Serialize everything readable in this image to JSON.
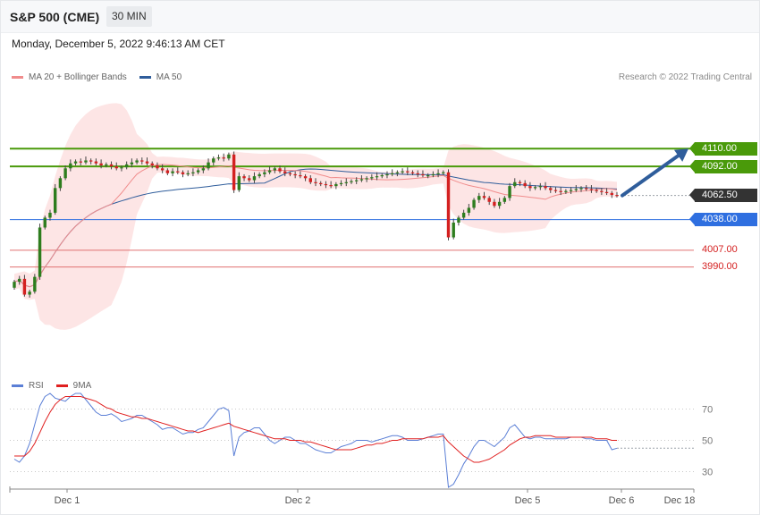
{
  "header": {
    "title": "S&P 500 (CME)",
    "interval": "30 MIN"
  },
  "timestamp": "Monday, December 5, 2022 9:46:13 AM CET",
  "legend": {
    "main": [
      {
        "label": "MA 20 + Bollinger Bands",
        "color": "#f08c8c"
      },
      {
        "label": "MA 50",
        "color": "#2f5d9b"
      }
    ],
    "rsi": [
      {
        "label": "RSI",
        "color": "#5b7fd6"
      },
      {
        "label": "9MA",
        "color": "#e02020"
      }
    ]
  },
  "copyright": "Research © 2022 Trading Central",
  "levels": [
    {
      "label": "4110.00",
      "value": 4110,
      "kind": "resistance",
      "color": "#4a9a0a"
    },
    {
      "label": "4092.00",
      "value": 4092,
      "kind": "resistance",
      "color": "#4a9a0a"
    },
    {
      "label": "4062.50",
      "value": 4062.5,
      "kind": "last",
      "color": "#333333"
    },
    {
      "label": "4038.00",
      "value": 4038,
      "kind": "pivot",
      "color": "#2f6fe0"
    },
    {
      "label": "4007.00",
      "value": 4007,
      "kind": "support",
      "color": "#d42020"
    },
    {
      "label": "3990.00",
      "value": 3990,
      "kind": "support",
      "color": "#d42020"
    }
  ],
  "chart_data": [
    {
      "type": "candlestick",
      "title": "S&P 500 (CME)",
      "xlabel": "",
      "ylabel": "",
      "x_ticks": [
        "Dec 1",
        "Dec 2",
        "Dec 5",
        "Dec 6",
        "Dec 18"
      ],
      "ylim": [
        3880,
        4170
      ],
      "last_price": 4062.5,
      "forecast_arrow": {
        "from": 4062.5,
        "to": 4110
      },
      "series": [
        {
          "name": "MA 20 + Bollinger Bands"
        },
        {
          "name": "MA 50"
        }
      ],
      "close": [
        3975,
        3978,
        3962,
        3965,
        3980,
        4030,
        4040,
        4045,
        4070,
        4080,
        4090,
        4095,
        4097,
        4096,
        4098,
        4097,
        4095,
        4093,
        4094,
        4092,
        4090,
        4091,
        4094,
        4096,
        4098,
        4097,
        4095,
        4093,
        4090,
        4088,
        4085,
        4087,
        4086,
        4084,
        4085,
        4086,
        4088,
        4090,
        4096,
        4100,
        4101,
        4100,
        4104,
        4068,
        4082,
        4080,
        4078,
        4082,
        4084,
        4086,
        4088,
        4090,
        4087,
        4085,
        4084,
        4083,
        4082,
        4080,
        4076,
        4075,
        4074,
        4073,
        4072,
        4074,
        4075,
        4076,
        4077,
        4078,
        4079,
        4080,
        4081,
        4082,
        4083,
        4084,
        4085,
        4086,
        4087,
        4086,
        4085,
        4084,
        4083,
        4083,
        4084,
        4085,
        4086,
        4020,
        4035,
        4040,
        4045,
        4050,
        4058,
        4062,
        4060,
        4056,
        4052,
        4056,
        4060,
        4072,
        4076,
        4075,
        4072,
        4070,
        4071,
        4072,
        4070,
        4068,
        4067,
        4066,
        4067,
        4068,
        4069,
        4070,
        4069,
        4068,
        4067,
        4066,
        4065,
        4063,
        4062.5
      ],
      "rsi": {
        "ylim": [
          20,
          80
        ],
        "levels": [
          70,
          50,
          30
        ],
        "rsi": [
          38,
          36,
          40,
          48,
          60,
          72,
          78,
          80,
          77,
          76,
          75,
          78,
          80,
          80,
          76,
          72,
          68,
          66,
          66,
          67,
          65,
          62,
          63,
          64,
          66,
          66,
          64,
          62,
          60,
          57,
          58,
          58,
          56,
          54,
          55,
          55,
          57,
          58,
          62,
          66,
          70,
          71,
          69,
          40,
          52,
          55,
          56,
          58,
          58,
          54,
          50,
          48,
          50,
          52,
          52,
          50,
          48,
          48,
          46,
          44,
          43,
          42,
          42,
          44,
          46,
          47,
          48,
          50,
          50,
          50,
          49,
          50,
          51,
          52,
          53,
          53,
          52,
          50,
          50,
          50,
          51,
          52,
          53,
          54,
          54,
          20,
          22,
          28,
          35,
          40,
          46,
          50,
          50,
          48,
          46,
          49,
          52,
          58,
          60,
          56,
          52,
          51,
          52,
          52,
          51,
          51,
          51,
          51,
          51,
          52,
          52,
          52,
          51,
          51,
          50,
          50,
          50,
          44,
          45
        ],
        "ma9": [
          40,
          40,
          40,
          43,
          48,
          55,
          62,
          68,
          73,
          76,
          78,
          78,
          78,
          78,
          77,
          76,
          75,
          73,
          71,
          70,
          68,
          67,
          66,
          65,
          65,
          64,
          64,
          63,
          62,
          61,
          60,
          59,
          58,
          57,
          56,
          56,
          55,
          56,
          57,
          58,
          59,
          60,
          61,
          59,
          58,
          57,
          56,
          55,
          54,
          53,
          52,
          51,
          51,
          51,
          50,
          50,
          50,
          49,
          49,
          48,
          47,
          46,
          45,
          44,
          44,
          44,
          44,
          45,
          46,
          47,
          47,
          48,
          48,
          49,
          50,
          50,
          51,
          51,
          51,
          51,
          51,
          52,
          52,
          52,
          53,
          49,
          46,
          43,
          40,
          38,
          36,
          36,
          37,
          38,
          40,
          42,
          44,
          47,
          49,
          51,
          52,
          52,
          53,
          53,
          53,
          53,
          52,
          52,
          52,
          52,
          52,
          52,
          52,
          52,
          51,
          51,
          51,
          50,
          50
        ]
      }
    }
  ]
}
